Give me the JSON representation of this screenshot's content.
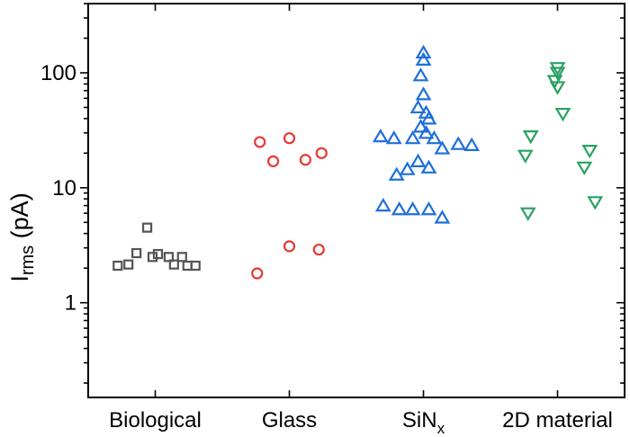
{
  "chart_data": {
    "type": "scatter",
    "title": "",
    "ylabel": {
      "main": "I",
      "sub": "rms",
      "unit": " (pA)"
    },
    "xlabel": "",
    "y_scale": "log",
    "ylim": [
      0.15,
      400
    ],
    "grid": false,
    "legend": "none",
    "categories": [
      {
        "label": "Biological",
        "sub": ""
      },
      {
        "label": "Glass",
        "sub": ""
      },
      {
        "label": "SiN",
        "sub": "x"
      },
      {
        "label": "2D material",
        "sub": ""
      }
    ],
    "y_ticks": [
      {
        "value": 1,
        "label": "1"
      },
      {
        "value": 10,
        "label": "10"
      },
      {
        "value": 100,
        "label": "100"
      }
    ],
    "series": [
      {
        "category": "Biological",
        "marker": "square",
        "color": "#555555",
        "points": [
          {
            "x": -0.28,
            "y": 2.1
          },
          {
            "x": -0.2,
            "y": 2.15
          },
          {
            "x": -0.14,
            "y": 2.7
          },
          {
            "x": -0.06,
            "y": 4.5
          },
          {
            "x": -0.02,
            "y": 2.5
          },
          {
            "x": 0.02,
            "y": 2.65
          },
          {
            "x": 0.1,
            "y": 2.5
          },
          {
            "x": 0.14,
            "y": 2.15
          },
          {
            "x": 0.2,
            "y": 2.5
          },
          {
            "x": 0.24,
            "y": 2.1
          },
          {
            "x": 0.3,
            "y": 2.1
          }
        ]
      },
      {
        "category": "Glass",
        "marker": "circle",
        "color": "#e53935",
        "points": [
          {
            "x": -0.22,
            "y": 25
          },
          {
            "x": -0.12,
            "y": 17
          },
          {
            "x": 0.0,
            "y": 27
          },
          {
            "x": 0.12,
            "y": 17.5
          },
          {
            "x": 0.24,
            "y": 20
          },
          {
            "x": -0.24,
            "y": 1.8
          },
          {
            "x": 0.0,
            "y": 3.1
          },
          {
            "x": 0.22,
            "y": 2.9
          }
        ]
      },
      {
        "category": "SiNx",
        "marker": "triangle-up",
        "color": "#1e6fd9",
        "points": [
          {
            "x": 0.0,
            "y": 150
          },
          {
            "x": 0.0,
            "y": 130
          },
          {
            "x": -0.02,
            "y": 95
          },
          {
            "x": 0.0,
            "y": 65
          },
          {
            "x": -0.04,
            "y": 50
          },
          {
            "x": 0.02,
            "y": 45
          },
          {
            "x": 0.04,
            "y": 40
          },
          {
            "x": -0.02,
            "y": 34
          },
          {
            "x": 0.02,
            "y": 30
          },
          {
            "x": -0.32,
            "y": 28
          },
          {
            "x": -0.22,
            "y": 27
          },
          {
            "x": -0.08,
            "y": 27
          },
          {
            "x": 0.08,
            "y": 27
          },
          {
            "x": 0.14,
            "y": 22
          },
          {
            "x": 0.26,
            "y": 24
          },
          {
            "x": 0.36,
            "y": 23.5
          },
          {
            "x": -0.04,
            "y": 17
          },
          {
            "x": 0.04,
            "y": 15
          },
          {
            "x": -0.12,
            "y": 14.5
          },
          {
            "x": -0.2,
            "y": 13
          },
          {
            "x": -0.3,
            "y": 7
          },
          {
            "x": -0.18,
            "y": 6.5
          },
          {
            "x": -0.08,
            "y": 6.5
          },
          {
            "x": 0.04,
            "y": 6.5
          },
          {
            "x": 0.14,
            "y": 5.5
          }
        ]
      },
      {
        "category": "2D material",
        "marker": "triangle-down",
        "color": "#2aa163",
        "points": [
          {
            "x": 0.0,
            "y": 110
          },
          {
            "x": 0.0,
            "y": 100
          },
          {
            "x": -0.02,
            "y": 85
          },
          {
            "x": 0.0,
            "y": 75
          },
          {
            "x": 0.04,
            "y": 44
          },
          {
            "x": -0.2,
            "y": 28
          },
          {
            "x": 0.24,
            "y": 21
          },
          {
            "x": -0.24,
            "y": 19
          },
          {
            "x": 0.2,
            "y": 15
          },
          {
            "x": 0.28,
            "y": 7.5
          },
          {
            "x": -0.22,
            "y": 6
          }
        ]
      }
    ]
  }
}
